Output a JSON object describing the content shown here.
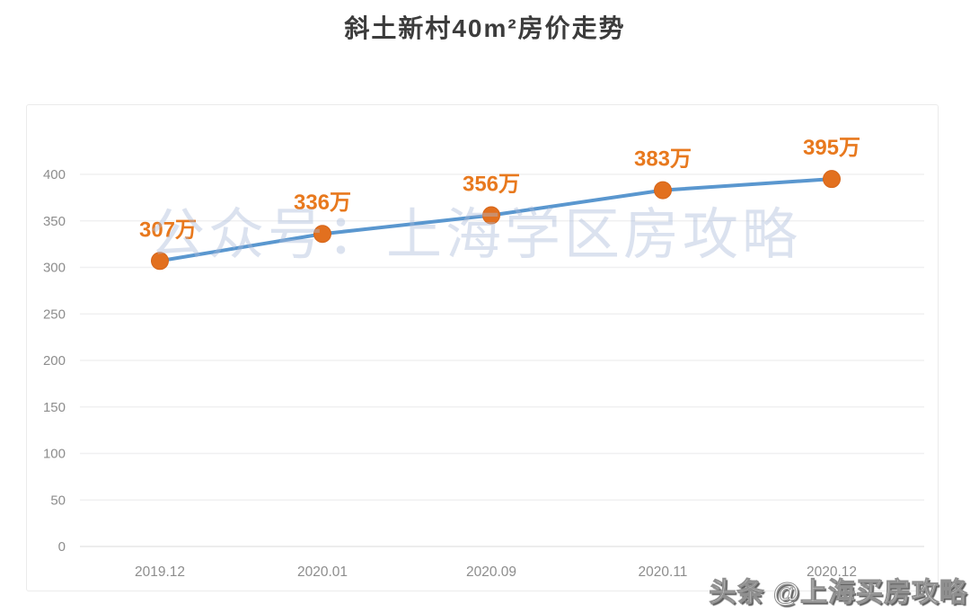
{
  "page": {
    "title": "斜土新村40m²房价走势",
    "watermark": "公众号：上海学区房攻略",
    "branding": "头条 @上海买房攻略"
  },
  "colors": {
    "line": "#5a97cf",
    "point": "#e2701f",
    "point_edge": "#d5651a",
    "data_label": "#e8791e",
    "axis_text": "#8d8d8d",
    "gridline": "#f0f0f1",
    "baseline": "#e7e7e7"
  },
  "chart_data": {
    "type": "line",
    "title": "斜土新村40m²房价走势",
    "categories": [
      "2019.12",
      "2020.01",
      "2020.09",
      "2020.11",
      "2020.12"
    ],
    "values": [
      307,
      336,
      356,
      383,
      395
    ],
    "point_labels": [
      "307万",
      "336万",
      "356万",
      "383万",
      "395万"
    ],
    "unit": "万",
    "xlabel": "",
    "ylabel": "",
    "ylim": [
      0,
      400
    ],
    "yticks": [
      0,
      50,
      100,
      150,
      200,
      250,
      300,
      350,
      400
    ],
    "grid": "horizontal",
    "legend": "none"
  }
}
